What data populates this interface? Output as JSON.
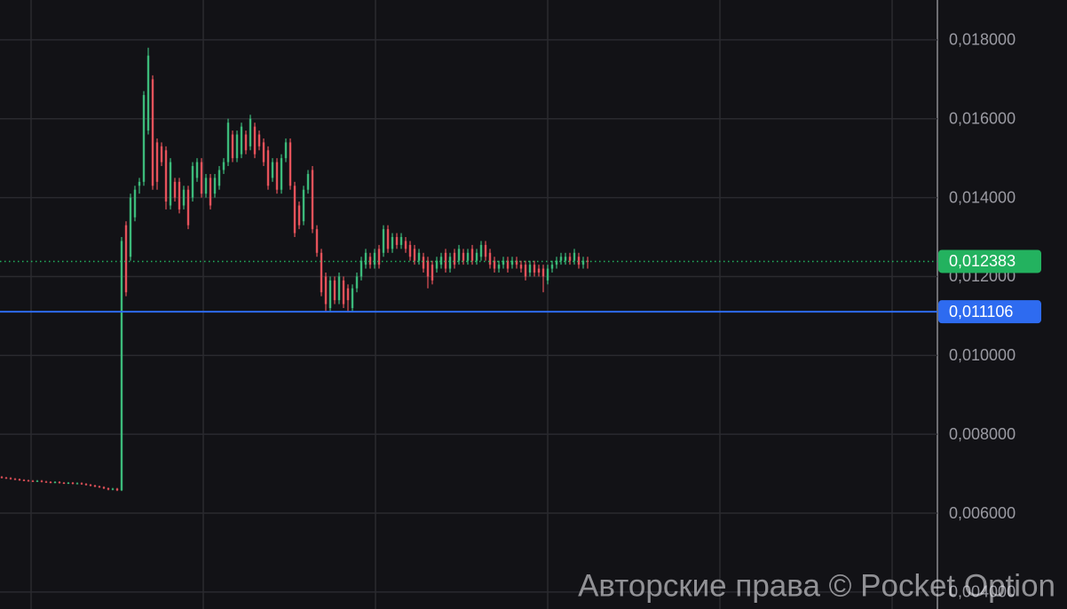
{
  "chart_data": {
    "type": "candlestick",
    "ylim": [
      0.00357,
      0.01901
    ],
    "yticks": [
      {
        "value": 0.018,
        "label": "0,018000"
      },
      {
        "value": 0.016,
        "label": "0,016000"
      },
      {
        "value": 0.014,
        "label": "0,014000"
      },
      {
        "value": 0.012,
        "label": "0,012000"
      },
      {
        "value": 0.01,
        "label": "0,010000"
      },
      {
        "value": 0.008,
        "label": "0,008000"
      },
      {
        "value": 0.006,
        "label": "0,006000"
      },
      {
        "value": 0.004,
        "label": "0,004000"
      }
    ],
    "grid": true,
    "up_color": "#3cba7a",
    "down_color": "#e5525a",
    "ohlc": [
      [
        0.00692,
        0.00694,
        0.00688,
        0.0069
      ],
      [
        0.0069,
        0.00692,
        0.00687,
        0.00689
      ],
      [
        0.00689,
        0.00691,
        0.00685,
        0.00687
      ],
      [
        0.00687,
        0.00689,
        0.00684,
        0.00686
      ],
      [
        0.00686,
        0.00688,
        0.00682,
        0.00684
      ],
      [
        0.00684,
        0.00686,
        0.00681,
        0.00683
      ],
      [
        0.00683,
        0.00685,
        0.0068,
        0.00682
      ],
      [
        0.00682,
        0.00684,
        0.00679,
        0.00681
      ],
      [
        0.00681,
        0.00684,
        0.00679,
        0.00682
      ],
      [
        0.00682,
        0.00684,
        0.00678,
        0.0068
      ],
      [
        0.0068,
        0.00682,
        0.00677,
        0.00679
      ],
      [
        0.00679,
        0.00681,
        0.00676,
        0.00678
      ],
      [
        0.00678,
        0.00681,
        0.00676,
        0.00679
      ],
      [
        0.00679,
        0.00681,
        0.00675,
        0.00677
      ],
      [
        0.00677,
        0.00679,
        0.00674,
        0.00676
      ],
      [
        0.00676,
        0.00679,
        0.00674,
        0.00677
      ],
      [
        0.00677,
        0.00679,
        0.00673,
        0.00675
      ],
      [
        0.00675,
        0.00678,
        0.00673,
        0.00676
      ],
      [
        0.00676,
        0.00678,
        0.00672,
        0.00674
      ],
      [
        0.00674,
        0.00676,
        0.0067,
        0.00672
      ],
      [
        0.00672,
        0.00674,
        0.00668,
        0.0067
      ],
      [
        0.0067,
        0.00672,
        0.00666,
        0.00668
      ],
      [
        0.00668,
        0.0067,
        0.00664,
        0.00666
      ],
      [
        0.00666,
        0.00668,
        0.00661,
        0.00663
      ],
      [
        0.00663,
        0.00665,
        0.00658,
        0.0066
      ],
      [
        0.0066,
        0.00664,
        0.00658,
        0.00662
      ],
      [
        0.00662,
        0.00664,
        0.00656,
        0.00658
      ],
      [
        0.00658,
        0.013,
        0.00656,
        0.0129
      ],
      [
        0.0133,
        0.0134,
        0.0115,
        0.0116
      ],
      [
        0.0125,
        0.0141,
        0.0124,
        0.014
      ],
      [
        0.0135,
        0.0143,
        0.0134,
        0.0142
      ],
      [
        0.0143,
        0.0145,
        0.0141,
        0.0144
      ],
      [
        0.0144,
        0.0167,
        0.0143,
        0.0166
      ],
      [
        0.0157,
        0.0178,
        0.0156,
        0.0176
      ],
      [
        0.017,
        0.0171,
        0.0142,
        0.0143
      ],
      [
        0.0154,
        0.0155,
        0.0142,
        0.0144
      ],
      [
        0.0153,
        0.0154,
        0.0148,
        0.0149
      ],
      [
        0.0152,
        0.0153,
        0.0137,
        0.0139
      ],
      [
        0.0138,
        0.015,
        0.0137,
        0.0149
      ],
      [
        0.0144,
        0.0145,
        0.0139,
        0.014
      ],
      [
        0.0144,
        0.0145,
        0.0136,
        0.0137
      ],
      [
        0.0138,
        0.0143,
        0.0137,
        0.0142
      ],
      [
        0.0142,
        0.0143,
        0.0132,
        0.0133
      ],
      [
        0.014,
        0.0149,
        0.0139,
        0.0148
      ],
      [
        0.0145,
        0.015,
        0.0144,
        0.0149
      ],
      [
        0.0149,
        0.015,
        0.014,
        0.0141
      ],
      [
        0.0141,
        0.0146,
        0.014,
        0.0145
      ],
      [
        0.0145,
        0.0146,
        0.0137,
        0.0138
      ],
      [
        0.0141,
        0.0146,
        0.014,
        0.0145
      ],
      [
        0.0143,
        0.0148,
        0.0142,
        0.0147
      ],
      [
        0.0147,
        0.015,
        0.0146,
        0.0149
      ],
      [
        0.0149,
        0.016,
        0.0148,
        0.0159
      ],
      [
        0.0156,
        0.0157,
        0.0149,
        0.015
      ],
      [
        0.015,
        0.0157,
        0.0149,
        0.0156
      ],
      [
        0.0151,
        0.0159,
        0.015,
        0.0158
      ],
      [
        0.0156,
        0.0157,
        0.0151,
        0.0152
      ],
      [
        0.0153,
        0.0161,
        0.0152,
        0.016
      ],
      [
        0.0158,
        0.0159,
        0.015,
        0.0151
      ],
      [
        0.0156,
        0.0157,
        0.0152,
        0.0153
      ],
      [
        0.0154,
        0.0155,
        0.0148,
        0.0149
      ],
      [
        0.0152,
        0.0153,
        0.0142,
        0.0143
      ],
      [
        0.0145,
        0.015,
        0.0144,
        0.0149
      ],
      [
        0.0149,
        0.015,
        0.0141,
        0.0142
      ],
      [
        0.0142,
        0.0151,
        0.0141,
        0.015
      ],
      [
        0.015,
        0.0155,
        0.0149,
        0.0154
      ],
      [
        0.0154,
        0.0155,
        0.0142,
        0.0143
      ],
      [
        0.0143,
        0.0144,
        0.013,
        0.0131
      ],
      [
        0.0138,
        0.0139,
        0.0132,
        0.0133
      ],
      [
        0.0134,
        0.0143,
        0.0133,
        0.0142
      ],
      [
        0.0142,
        0.0147,
        0.0141,
        0.0146
      ],
      [
        0.0147,
        0.0148,
        0.0131,
        0.0132
      ],
      [
        0.0132,
        0.0133,
        0.0125,
        0.0126
      ],
      [
        0.0126,
        0.0127,
        0.0115,
        0.0116
      ],
      [
        0.012,
        0.0121,
        0.0111,
        0.0113
      ],
      [
        0.0112,
        0.012,
        0.0111,
        0.0119
      ],
      [
        0.0119,
        0.012,
        0.0113,
        0.0114
      ],
      [
        0.0114,
        0.0121,
        0.0113,
        0.012
      ],
      [
        0.0119,
        0.012,
        0.0112,
        0.0113
      ],
      [
        0.0117,
        0.0118,
        0.0111,
        0.0114
      ],
      [
        0.0112,
        0.0118,
        0.0111,
        0.0117
      ],
      [
        0.0117,
        0.0121,
        0.0116,
        0.012
      ],
      [
        0.012,
        0.0125,
        0.0119,
        0.0124
      ],
      [
        0.0123,
        0.0127,
        0.0122,
        0.0126
      ],
      [
        0.0125,
        0.0126,
        0.0122,
        0.0123
      ],
      [
        0.0123,
        0.0127,
        0.0122,
        0.0126
      ],
      [
        0.0127,
        0.0128,
        0.0122,
        0.0123
      ],
      [
        0.0126,
        0.0133,
        0.0125,
        0.0132
      ],
      [
        0.0132,
        0.0133,
        0.0126,
        0.0127
      ],
      [
        0.0127,
        0.0131,
        0.0126,
        0.013
      ],
      [
        0.013,
        0.0131,
        0.0127,
        0.0128
      ],
      [
        0.0128,
        0.0131,
        0.0127,
        0.013
      ],
      [
        0.0129,
        0.013,
        0.0126,
        0.0127
      ],
      [
        0.0128,
        0.0129,
        0.0124,
        0.0125
      ],
      [
        0.0127,
        0.0128,
        0.0123,
        0.0124
      ],
      [
        0.0124,
        0.0127,
        0.0123,
        0.0126
      ],
      [
        0.0125,
        0.0126,
        0.0121,
        0.0122
      ],
      [
        0.0124,
        0.0125,
        0.0117,
        0.012
      ],
      [
        0.0123,
        0.0124,
        0.0118,
        0.0119
      ],
      [
        0.0122,
        0.0125,
        0.0121,
        0.0124
      ],
      [
        0.0123,
        0.0126,
        0.0122,
        0.0125
      ],
      [
        0.0126,
        0.0127,
        0.0121,
        0.0122
      ],
      [
        0.0122,
        0.0126,
        0.0121,
        0.0125
      ],
      [
        0.0126,
        0.0127,
        0.0122,
        0.0123
      ],
      [
        0.0124,
        0.0128,
        0.0123,
        0.0127
      ],
      [
        0.0126,
        0.0127,
        0.0123,
        0.0124
      ],
      [
        0.0124,
        0.0127,
        0.0123,
        0.0126
      ],
      [
        0.0127,
        0.0128,
        0.0123,
        0.0124
      ],
      [
        0.0124,
        0.0127,
        0.0123,
        0.0126
      ],
      [
        0.0125,
        0.0129,
        0.0124,
        0.0128
      ],
      [
        0.0128,
        0.0129,
        0.0124,
        0.0125
      ],
      [
        0.0126,
        0.0127,
        0.0122,
        0.0123
      ],
      [
        0.0124,
        0.0125,
        0.0121,
        0.0122
      ],
      [
        0.0122,
        0.0124,
        0.0121,
        0.0123
      ],
      [
        0.0123,
        0.0125,
        0.0122,
        0.0124
      ],
      [
        0.0124,
        0.0125,
        0.0121,
        0.0122
      ],
      [
        0.0123,
        0.0125,
        0.0122,
        0.0124
      ],
      [
        0.0124,
        0.0125,
        0.0122,
        0.0123
      ],
      [
        0.0123,
        0.0124,
        0.0121,
        0.0122
      ],
      [
        0.0123,
        0.0124,
        0.0119,
        0.012
      ],
      [
        0.0121,
        0.0124,
        0.012,
        0.0123
      ],
      [
        0.0123,
        0.0124,
        0.012,
        0.0121
      ],
      [
        0.0122,
        0.0123,
        0.012,
        0.0121
      ],
      [
        0.0122,
        0.0123,
        0.0116,
        0.012
      ],
      [
        0.0119,
        0.0123,
        0.0118,
        0.0122
      ],
      [
        0.0122,
        0.0124,
        0.0121,
        0.0123
      ],
      [
        0.0123,
        0.0125,
        0.0122,
        0.0124
      ],
      [
        0.0124,
        0.0126,
        0.0123,
        0.0125
      ],
      [
        0.0124,
        0.0126,
        0.0123,
        0.0125
      ],
      [
        0.0125,
        0.0126,
        0.0123,
        0.0124
      ],
      [
        0.0124,
        0.0127,
        0.0123,
        0.0126
      ],
      [
        0.0125,
        0.0126,
        0.0122,
        0.0123
      ],
      [
        0.0123,
        0.0125,
        0.0122,
        0.0124
      ],
      [
        0.0124,
        0.0125,
        0.0122,
        0.012383
      ]
    ],
    "price_lines": [
      {
        "value": 0.012383,
        "label": "0,012383",
        "color": "#23b25f",
        "style": "dotted"
      },
      {
        "value": 0.011106,
        "label": "0,011106",
        "color": "#2e6bf0",
        "style": "solid"
      }
    ],
    "watermark": "Авторские права © Pocket Option"
  }
}
